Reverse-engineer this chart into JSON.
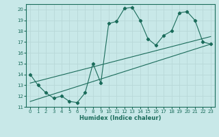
{
  "title": "",
  "xlabel": "Humidex (Indice chaleur)",
  "ylabel": "",
  "bg_color": "#c8e8e8",
  "grid_color": "#b8d8d8",
  "line_color": "#1a6b5a",
  "xlim": [
    -0.5,
    23.5
  ],
  "ylim": [
    11,
    20.5
  ],
  "yticks": [
    11,
    12,
    13,
    14,
    15,
    16,
    17,
    18,
    19,
    20
  ],
  "xticks": [
    0,
    1,
    2,
    3,
    4,
    5,
    6,
    7,
    8,
    9,
    10,
    11,
    12,
    13,
    14,
    15,
    16,
    17,
    18,
    19,
    20,
    21,
    22,
    23
  ],
  "line1_x": [
    0,
    1,
    2,
    3,
    4,
    5,
    6,
    7,
    8,
    9,
    10,
    11,
    12,
    13,
    14,
    15,
    16,
    17,
    18,
    19,
    20,
    21,
    22,
    23
  ],
  "line1_y": [
    14.0,
    13.0,
    12.3,
    11.8,
    12.0,
    11.5,
    11.4,
    12.3,
    15.0,
    13.2,
    18.7,
    18.9,
    20.1,
    20.2,
    19.0,
    17.3,
    16.7,
    17.6,
    18.0,
    19.7,
    19.8,
    19.0,
    17.0,
    16.8
  ],
  "line2_x": [
    0,
    23
  ],
  "line2_y": [
    11.5,
    16.8
  ],
  "line3_x": [
    0,
    23
  ],
  "line3_y": [
    13.2,
    17.5
  ]
}
